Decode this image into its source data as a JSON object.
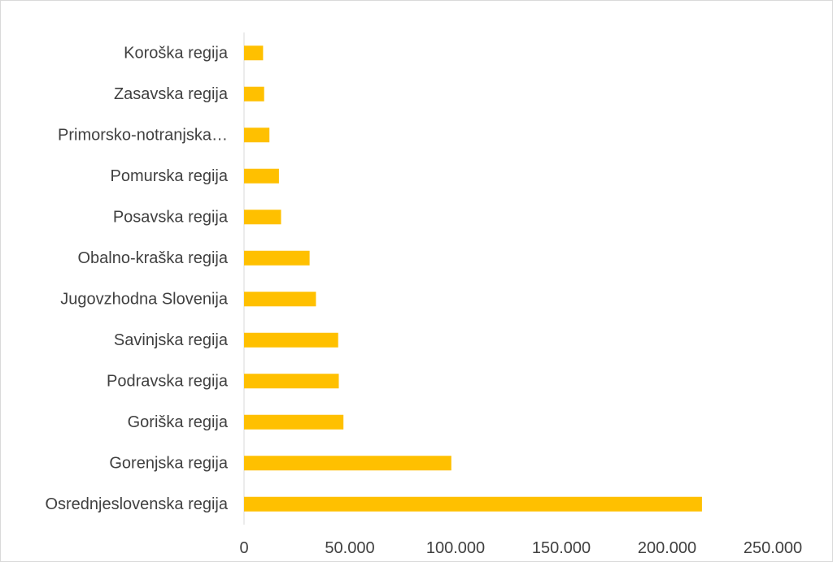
{
  "chart_data": {
    "type": "bar",
    "orientation": "horizontal",
    "categories": [
      "Koroška regija",
      "Zasavska regija",
      "Primorsko-notranjska…",
      "Pomurska regija",
      "Posavska regija",
      "Obalno-kraška regija",
      "Jugovzhodna Slovenija",
      "Savinjska regija",
      "Podravska regija",
      "Goriška regija",
      "Gorenjska regija",
      "Osrednjeslovenska regija"
    ],
    "values": [
      9000,
      9500,
      12000,
      16500,
      17500,
      31000,
      34000,
      44500,
      44800,
      47000,
      98000,
      216500
    ],
    "xlim": [
      0,
      250000
    ],
    "xticks": [
      0,
      50000,
      100000,
      150000,
      200000,
      250000
    ],
    "xtick_labels": [
      "0",
      "50.000",
      "100.000",
      "150.000",
      "200.000",
      "250.000"
    ],
    "bar_color": "#FFC000",
    "grid": false,
    "legend": "none",
    "title": "",
    "xlabel": "",
    "ylabel": ""
  }
}
